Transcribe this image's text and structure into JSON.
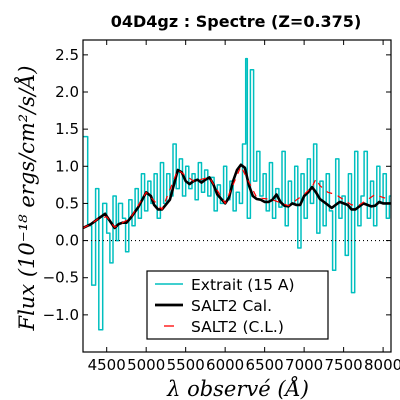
{
  "chart_data": {
    "type": "line",
    "title": "04D4gz : Spectre (Z=0.375)",
    "xlabel": "λ observé (Å)",
    "ylabel": "Flux (10⁻¹⁸ ergs/cm²/s/Å)",
    "xlim": [
      4200,
      8100
    ],
    "ylim": [
      -1.5,
      2.7
    ],
    "xticks": [
      4500,
      5000,
      5500,
      6000,
      6500,
      7000,
      7500,
      8000
    ],
    "yticks": [
      -1.0,
      -0.5,
      0.0,
      0.5,
      1.0,
      1.5,
      2.0,
      2.5
    ],
    "xtick_labels": [
      "4500",
      "5000",
      "5500",
      "6000",
      "6500",
      "7000",
      "7500",
      "8000"
    ],
    "ytick_labels": [
      "−1.0",
      "−0.5",
      "0.0",
      "0.5",
      "1.0",
      "1.5",
      "2.0",
      "2.5"
    ],
    "zero_line": {
      "y": 0.0,
      "style": "dotted",
      "color": "#000000"
    },
    "legend_position": "lower-center",
    "series": [
      {
        "name": "Extrait (15 A)",
        "style": "step",
        "color": "#00bfbf",
        "x": [
          4200,
          4260,
          4310,
          4360,
          4400,
          4450,
          4500,
          4540,
          4580,
          4620,
          4650,
          4700,
          4740,
          4780,
          4820,
          4860,
          4900,
          4940,
          4980,
          5020,
          5060,
          5100,
          5140,
          5180,
          5220,
          5260,
          5300,
          5340,
          5380,
          5420,
          5460,
          5500,
          5540,
          5580,
          5620,
          5660,
          5700,
          5740,
          5780,
          5820,
          5860,
          5900,
          5940,
          5980,
          6020,
          6060,
          6100,
          6140,
          6180,
          6220,
          6260,
          6280,
          6320,
          6360,
          6400,
          6440,
          6480,
          6520,
          6560,
          6600,
          6640,
          6680,
          6720,
          6760,
          6800,
          6840,
          6880,
          6920,
          6960,
          7000,
          7040,
          7080,
          7120,
          7160,
          7200,
          7240,
          7280,
          7320,
          7360,
          7400,
          7440,
          7480,
          7520,
          7560,
          7600,
          7640,
          7680,
          7720,
          7760,
          7800,
          7840,
          7880,
          7920,
          7960,
          8000,
          8040,
          8080
        ],
        "y": [
          1.4,
          0.2,
          -0.6,
          0.7,
          -1.2,
          0.5,
          0.1,
          -0.3,
          0.6,
          0.0,
          0.5,
          0.3,
          -0.15,
          0.55,
          0.2,
          0.7,
          0.3,
          0.9,
          0.4,
          0.8,
          0.5,
          0.9,
          0.3,
          1.05,
          0.5,
          0.9,
          0.6,
          1.3,
          0.7,
          1.1,
          0.6,
          1.0,
          0.7,
          0.9,
          0.55,
          1.05,
          0.65,
          0.95,
          0.6,
          0.85,
          0.4,
          0.75,
          0.5,
          1.0,
          0.55,
          0.8,
          0.4,
          0.65,
          0.5,
          1.3,
          2.45,
          0.3,
          2.3,
          0.8,
          1.2,
          0.6,
          0.9,
          0.4,
          1.05,
          0.3,
          0.7,
          0.45,
          1.2,
          0.2,
          0.8,
          0.5,
          1.0,
          -0.1,
          0.9,
          0.3,
          1.1,
          0.5,
          1.3,
          0.1,
          0.8,
          0.2,
          0.9,
          0.4,
          -0.4,
          1.1,
          0.3,
          0.6,
          -0.2,
          0.9,
          -0.7,
          1.2,
          0.2,
          0.6,
          1.2,
          0.3,
          0.8,
          0.2,
          1.0,
          0.5,
          0.9,
          0.3,
          0.6
        ]
      },
      {
        "name": "SALT2 Cal.",
        "style": "line",
        "color": "#000000",
        "x": [
          4200,
          4300,
          4400,
          4480,
          4550,
          4600,
          4650,
          4700,
          4750,
          4800,
          4900,
          5000,
          5060,
          5100,
          5150,
          5200,
          5300,
          5400,
          5450,
          5500,
          5550,
          5600,
          5650,
          5700,
          5750,
          5800,
          5850,
          5900,
          6000,
          6050,
          6100,
          6150,
          6200,
          6250,
          6300,
          6350,
          6400,
          6450,
          6500,
          6550,
          6600,
          6650,
          6700,
          6750,
          6800,
          6850,
          6900,
          6950,
          7000,
          7050,
          7100,
          7150,
          7200,
          7250,
          7300,
          7350,
          7400,
          7450,
          7500,
          7550,
          7600,
          7650,
          7700,
          7750,
          7800,
          7850,
          7900,
          7950,
          8000,
          8100
        ],
        "y": [
          0.17,
          0.22,
          0.3,
          0.36,
          0.25,
          0.17,
          0.22,
          0.24,
          0.24,
          0.3,
          0.45,
          0.65,
          0.6,
          0.48,
          0.42,
          0.42,
          0.55,
          0.95,
          0.92,
          0.8,
          0.76,
          0.8,
          0.82,
          0.78,
          0.82,
          0.85,
          0.76,
          0.62,
          0.5,
          0.58,
          0.8,
          0.95,
          1.02,
          0.98,
          0.75,
          0.6,
          0.56,
          0.55,
          0.52,
          0.52,
          0.55,
          0.62,
          0.52,
          0.47,
          0.46,
          0.5,
          0.48,
          0.48,
          0.6,
          0.65,
          0.72,
          0.65,
          0.56,
          0.52,
          0.48,
          0.44,
          0.48,
          0.52,
          0.5,
          0.48,
          0.42,
          0.42,
          0.46,
          0.5,
          0.48,
          0.46,
          0.47,
          0.52,
          0.5,
          0.5
        ]
      },
      {
        "name": "SALT2 (C.L.)",
        "style": "dashed",
        "color": "#ff0000",
        "x": [
          4200,
          4300,
          4400,
          4500,
          4600,
          4700,
          4800,
          5000,
          5200,
          5400,
          5600,
          5800,
          6000,
          6200,
          6400,
          6600,
          6800,
          7000,
          7100,
          7150,
          7200,
          7300,
          7400,
          7500,
          7600,
          7700,
          7800,
          7900,
          8000,
          8100
        ],
        "y": [
          0.17,
          0.22,
          0.3,
          0.32,
          0.18,
          0.24,
          0.3,
          0.65,
          0.42,
          0.95,
          0.8,
          0.85,
          0.5,
          1.0,
          0.58,
          0.55,
          0.47,
          0.62,
          0.72,
          0.83,
          0.74,
          0.65,
          0.62,
          0.55,
          0.48,
          0.48,
          0.55,
          0.62,
          0.58,
          0.55
        ]
      }
    ]
  }
}
